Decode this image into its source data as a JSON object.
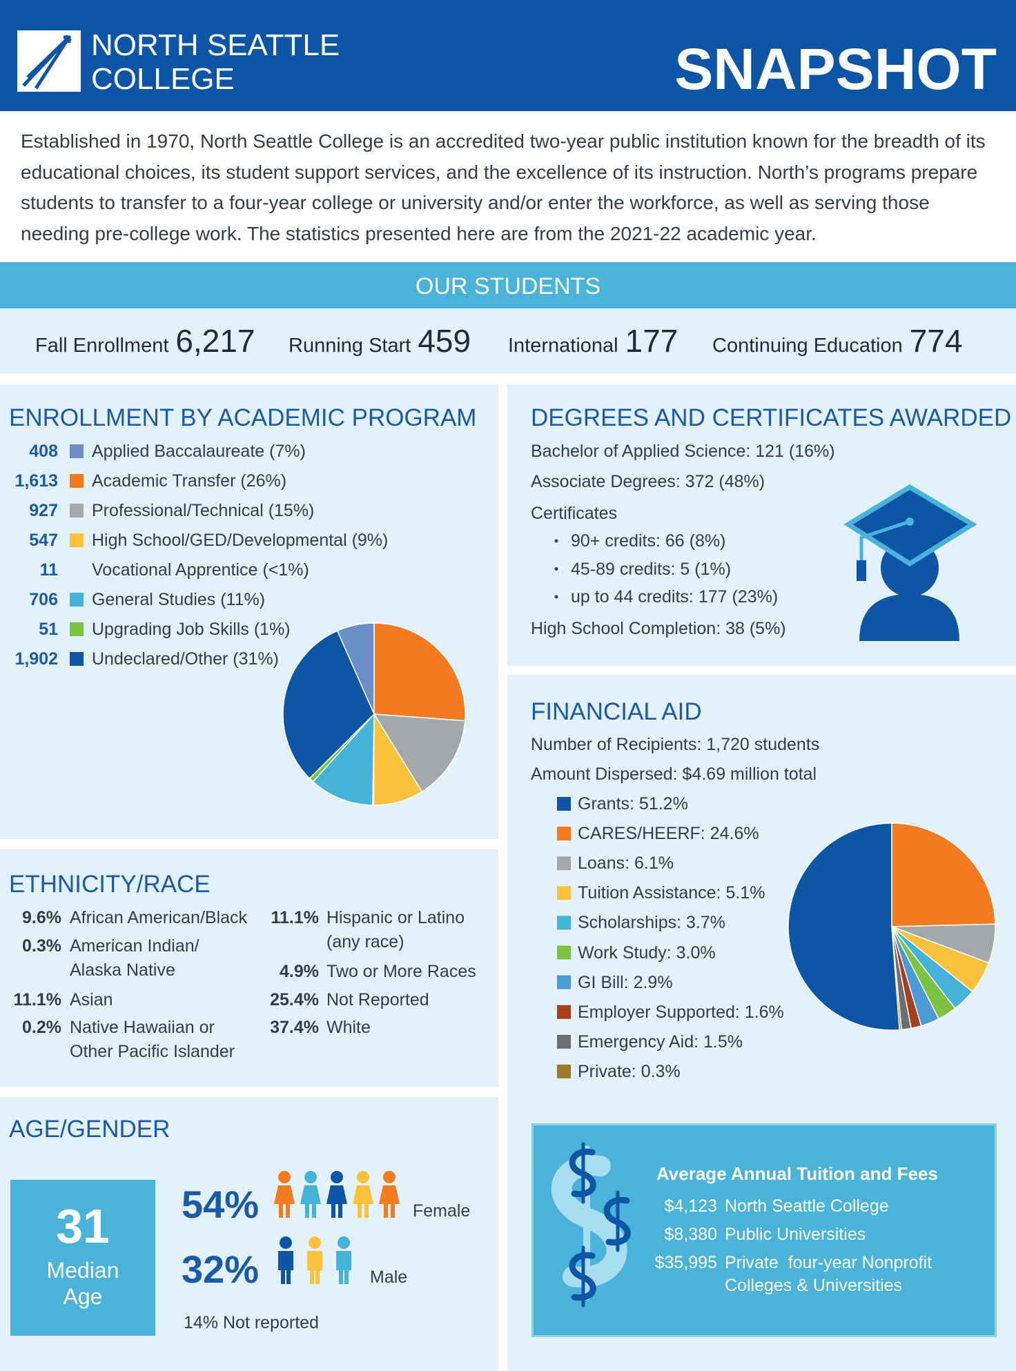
{
  "header": {
    "logo_line1": "NORTH SEATTLE",
    "logo_line2": "COLLEGE",
    "title": "SNAPSHOT"
  },
  "intro": "Established in 1970, North Seattle College is an accredited two-year public institution known for the breadth of its educational choices, its student support services, and the excellence of its instruction. North’s programs prepare students to transfer to a four-year college or university and/or enter the workforce, as well as serving those needing pre-college work. The statistics presented here are from the 2021-22 academic year.",
  "students": {
    "title": "OUR STUDENTS",
    "stats": [
      {
        "label": "Fall Enrollment",
        "value": "6,217"
      },
      {
        "label": "Running Start",
        "value": "459"
      },
      {
        "label": "International",
        "value": "177"
      },
      {
        "label": "Continuing Education",
        "value": "774"
      }
    ]
  },
  "enrollment": {
    "title": "ENROLLMENT BY ACADEMIC PROGRAM",
    "items": [
      {
        "count": 408,
        "label": "Applied Baccalaureate (7%)",
        "color": "#6a8fc8"
      },
      {
        "count": 1613,
        "count_label": "1,613",
        "label": "Academic Transfer (26%)",
        "color": "#f47a20"
      },
      {
        "count": 927,
        "label": "Professional/Technical (15%)",
        "color": "#a5a8aa"
      },
      {
        "count": 547,
        "label": "High School/GED/Developmental (9%)",
        "color": "#fcc23c"
      },
      {
        "count": 11,
        "label": "Vocational Apprentice (<1%)"
      },
      {
        "count": 706,
        "label": "General Studies (11%)",
        "color": "#45b3d8"
      },
      {
        "count": 51,
        "label": "Upgrading Job Skills (1%)",
        "color": "#7dc242"
      },
      {
        "count": 1902,
        "count_label": "1,902",
        "label": "Undeclared/Other (31%)",
        "color": "#0d56a6"
      }
    ]
  },
  "degrees": {
    "title": "DEGREES AND CERTIFICATES AWARDED",
    "bachelor": "Bachelor of Applied Science: 121 (16%)",
    "associate": "Associate Degrees: 372 (48%)",
    "certificates": "Certificates",
    "bullets": [
      "90+ credits: 66 (8%)",
      "45-89 credits: 5 (1%)",
      "up to 44 credits: 177 (23%)"
    ],
    "high_school": "High School Completion: 38 (5%)"
  },
  "ethnicity": {
    "title": "ETHNICITY/RACE",
    "columns": [
      [
        {
          "pct": "9.6%",
          "lines": [
            "African American/Black"
          ]
        },
        {
          "pct": "0.3%",
          "lines": [
            "American Indian/",
            "Alaska Native"
          ]
        },
        {
          "pct": "11.1%",
          "lines": [
            "Asian"
          ]
        },
        {
          "pct": "0.2%",
          "lines": [
            "Native Hawaiian or",
            "Other Pacific Islander"
          ]
        }
      ],
      [
        {
          "pct": "11.1%",
          "lines": [
            "Hispanic or Latino",
            "(any race)"
          ]
        },
        {
          "pct": "4.9%",
          "lines": [
            "Two or More Races"
          ]
        },
        {
          "pct": "25.4%",
          "lines": [
            "Not Reported"
          ]
        },
        {
          "pct": "37.4%",
          "lines": [
            "White"
          ]
        }
      ]
    ]
  },
  "age_gender": {
    "title": "AGE/GENDER",
    "median": "31",
    "median_label": [
      "Median",
      "Age"
    ],
    "female_pct": "54%",
    "female": "Female",
    "male_pct": "32%",
    "male": "Male",
    "not_reported": "14% Not reported"
  },
  "financial_aid": {
    "title": "FINANCIAL AID",
    "recipients": "Number of Recipients: 1,720 students",
    "amount": "Amount Dispersed: $4.69 million total",
    "items": [
      {
        "label": "Grants: 51.2%",
        "value": 51.2,
        "color": "#0d56a6"
      },
      {
        "label": "CARES/HEERF: 24.6%",
        "value": 24.6,
        "color": "#f47a20"
      },
      {
        "label": "Loans: 6.1%",
        "value": 6.1,
        "color": "#a5a8aa"
      },
      {
        "label": "Tuition Assistance: 5.1%",
        "value": 5.1,
        "color": "#fcc23c"
      },
      {
        "label": "Scholarships: 3.7%",
        "value": 3.7,
        "color": "#45b3d8"
      },
      {
        "label": "Work Study: 3.0%",
        "value": 3.0,
        "color": "#7dc242"
      },
      {
        "label": "GI Bill: 2.9%",
        "value": 2.9,
        "color": "#4a9ad6"
      },
      {
        "label": "Employer Supported: 1.6%",
        "value": 1.6,
        "color": "#a6401c"
      },
      {
        "label": "Emergency Aid: 1.5%",
        "value": 1.5,
        "color": "#6d6e71"
      },
      {
        "label": "Private: 0.3%",
        "value": 0.3,
        "color": "#9c7a2c"
      }
    ]
  },
  "tuition": {
    "title": "Average Annual Tuition and Fees",
    "rows": [
      {
        "amount": "$4,123",
        "lines": [
          "North Seattle College"
        ]
      },
      {
        "amount": "$8,380",
        "lines": [
          "Public Universities"
        ]
      },
      {
        "amount": "$35,995",
        "lines": [
          "Private  four-year Nonprofit",
          "Colleges & Universities"
        ]
      }
    ]
  }
}
